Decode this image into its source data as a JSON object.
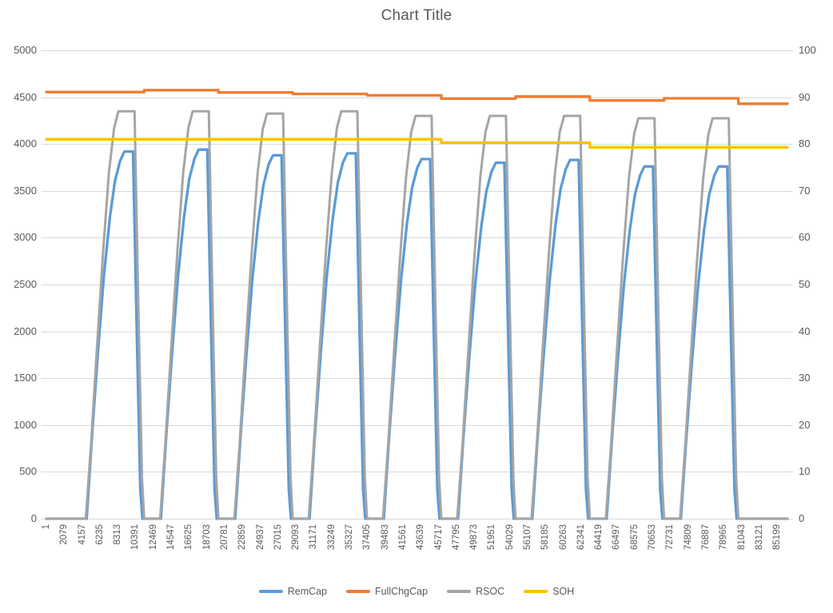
{
  "title": "Chart Title",
  "colors": {
    "remcap": "#5B9BD5",
    "fullchgcap": "#ED7D31",
    "rsoc": "#A5A5A5",
    "soh": "#FFC000",
    "gridline": "#D9D9D9",
    "axis_text": "#595959",
    "title_text": "#595959",
    "background": "#FFFFFF"
  },
  "legend": {
    "position": "bottom",
    "items": [
      {
        "label": "RemCap",
        "color": "#5B9BD5"
      },
      {
        "label": "FullChgCap",
        "color": "#ED7D31"
      },
      {
        "label": "RSOC",
        "color": "#A5A5A5"
      },
      {
        "label": "SOH",
        "color": "#FFC000"
      }
    ]
  },
  "chart_data": {
    "type": "line",
    "title": "Chart Title",
    "grid": "horizontal",
    "x_min": 1,
    "x_max": 86400,
    "left_axis": {
      "min": 0,
      "max": 5000,
      "step": 500,
      "ticks": [
        0,
        500,
        1000,
        1500,
        2000,
        2500,
        3000,
        3500,
        4000,
        4500,
        5000
      ]
    },
    "right_axis": {
      "min": 0,
      "max": 100,
      "step": 10,
      "ticks": [
        0,
        10,
        20,
        30,
        40,
        50,
        60,
        70,
        80,
        90,
        100
      ]
    },
    "x_tick_labels": [
      "1",
      "2079",
      "4157",
      "6235",
      "8313",
      "10391",
      "12469",
      "14547",
      "16625",
      "18703",
      "20781",
      "22859",
      "24937",
      "27015",
      "29093",
      "31171",
      "33249",
      "35327",
      "37405",
      "39483",
      "41561",
      "43639",
      "45717",
      "47795",
      "49873",
      "51951",
      "54029",
      "56107",
      "58185",
      "60263",
      "62341",
      "64419",
      "66497",
      "68575",
      "70653",
      "72731",
      "74809",
      "76887",
      "78965",
      "81043",
      "83121",
      "85199"
    ],
    "x_tick_start": 1,
    "x_tick_step": 2078,
    "series": [
      {
        "name": "RemCap",
        "axis": "left",
        "color": "#5B9BD5",
        "width": 3.3,
        "points": [
          [
            1,
            0
          ],
          [
            4700,
            0
          ],
          [
            5300,
            862
          ],
          [
            6000,
            1764
          ],
          [
            6700,
            2587
          ],
          [
            7400,
            3214
          ],
          [
            8000,
            3606
          ],
          [
            8600,
            3822
          ],
          [
            9100,
            3920
          ],
          [
            10100,
            3920
          ],
          [
            10550,
            1960
          ],
          [
            10950,
            314
          ],
          [
            11200,
            0
          ],
          [
            13360,
            0
          ],
          [
            13960,
            867
          ],
          [
            14660,
            1773
          ],
          [
            15360,
            2600
          ],
          [
            16060,
            3231
          ],
          [
            16660,
            3625
          ],
          [
            17260,
            3842
          ],
          [
            17760,
            3940
          ],
          [
            18760,
            3940
          ],
          [
            19210,
            1970
          ],
          [
            19610,
            315
          ],
          [
            19860,
            0
          ],
          [
            22020,
            0
          ],
          [
            22620,
            854
          ],
          [
            23320,
            1746
          ],
          [
            24020,
            2561
          ],
          [
            24720,
            3182
          ],
          [
            25320,
            3570
          ],
          [
            25920,
            3783
          ],
          [
            26420,
            3880
          ],
          [
            27420,
            3880
          ],
          [
            27870,
            1940
          ],
          [
            28270,
            310
          ],
          [
            28520,
            0
          ],
          [
            30680,
            0
          ],
          [
            31280,
            858
          ],
          [
            31980,
            1755
          ],
          [
            32680,
            2574
          ],
          [
            33380,
            3198
          ],
          [
            33980,
            3588
          ],
          [
            34580,
            3803
          ],
          [
            35080,
            3900
          ],
          [
            36080,
            3900
          ],
          [
            36530,
            1950
          ],
          [
            36930,
            312
          ],
          [
            37180,
            0
          ],
          [
            39340,
            0
          ],
          [
            39940,
            845
          ],
          [
            40640,
            1728
          ],
          [
            41340,
            2534
          ],
          [
            42040,
            3149
          ],
          [
            42640,
            3533
          ],
          [
            43240,
            3744
          ],
          [
            43740,
            3840
          ],
          [
            44740,
            3840
          ],
          [
            45190,
            1920
          ],
          [
            45590,
            307
          ],
          [
            45840,
            0
          ],
          [
            48000,
            0
          ],
          [
            48600,
            836
          ],
          [
            49300,
            1710
          ],
          [
            50000,
            2508
          ],
          [
            50700,
            3116
          ],
          [
            51300,
            3496
          ],
          [
            51900,
            3705
          ],
          [
            52400,
            3800
          ],
          [
            53400,
            3800
          ],
          [
            53850,
            1900
          ],
          [
            54250,
            304
          ],
          [
            54500,
            0
          ],
          [
            56660,
            0
          ],
          [
            57260,
            843
          ],
          [
            57960,
            1724
          ],
          [
            58660,
            2528
          ],
          [
            59360,
            3141
          ],
          [
            59960,
            3524
          ],
          [
            60560,
            3734
          ],
          [
            61060,
            3830
          ],
          [
            62060,
            3830
          ],
          [
            62510,
            1915
          ],
          [
            62910,
            306
          ],
          [
            63160,
            0
          ],
          [
            65320,
            0
          ],
          [
            65920,
            827
          ],
          [
            66620,
            1692
          ],
          [
            67320,
            2482
          ],
          [
            68020,
            3083
          ],
          [
            68620,
            3459
          ],
          [
            69220,
            3666
          ],
          [
            69720,
            3760
          ],
          [
            70720,
            3760
          ],
          [
            71170,
            1880
          ],
          [
            71570,
            301
          ],
          [
            71820,
            0
          ],
          [
            73980,
            0
          ],
          [
            74580,
            827
          ],
          [
            75280,
            1692
          ],
          [
            75980,
            2482
          ],
          [
            76680,
            3083
          ],
          [
            77280,
            3459
          ],
          [
            77880,
            3666
          ],
          [
            78380,
            3760
          ],
          [
            79380,
            3760
          ],
          [
            79830,
            1880
          ],
          [
            80230,
            301
          ],
          [
            80480,
            0
          ],
          [
            86400,
            0
          ]
        ]
      },
      {
        "name": "FullChgCap",
        "axis": "left",
        "color": "#ED7D31",
        "width": 3.3,
        "points": [
          [
            1,
            4555
          ],
          [
            11400,
            4555
          ],
          [
            11400,
            4575
          ],
          [
            20060,
            4575
          ],
          [
            20060,
            4550
          ],
          [
            28720,
            4550
          ],
          [
            28720,
            4535
          ],
          [
            37380,
            4535
          ],
          [
            37380,
            4520
          ],
          [
            46040,
            4520
          ],
          [
            46040,
            4485
          ],
          [
            54700,
            4485
          ],
          [
            54700,
            4507
          ],
          [
            63360,
            4507
          ],
          [
            63360,
            4465
          ],
          [
            72020,
            4465
          ],
          [
            72020,
            4488
          ],
          [
            80680,
            4488
          ],
          [
            80680,
            4430
          ],
          [
            86400,
            4430
          ]
        ]
      },
      {
        "name": "RSOC",
        "axis": "right",
        "color": "#A5A5A5",
        "width": 3,
        "points": [
          [
            1,
            0
          ],
          [
            4600,
            0
          ],
          [
            5200,
            15.7
          ],
          [
            5900,
            36.5
          ],
          [
            6600,
            56.6
          ],
          [
            7300,
            74
          ],
          [
            7900,
            83.5
          ],
          [
            8400,
            87
          ],
          [
            10280,
            87
          ],
          [
            10750,
            43.5
          ],
          [
            11150,
            8.7
          ],
          [
            11400,
            0
          ],
          [
            13260,
            0
          ],
          [
            13860,
            15.7
          ],
          [
            14560,
            36.5
          ],
          [
            15260,
            56.6
          ],
          [
            15960,
            74
          ],
          [
            16560,
            83.5
          ],
          [
            17060,
            87
          ],
          [
            18940,
            87
          ],
          [
            19410,
            43.5
          ],
          [
            19810,
            8.7
          ],
          [
            20060,
            0
          ],
          [
            21920,
            0
          ],
          [
            22520,
            15.6
          ],
          [
            23220,
            36.3
          ],
          [
            23920,
            56.2
          ],
          [
            24620,
            73.5
          ],
          [
            25220,
            83.1
          ],
          [
            25720,
            86.5
          ],
          [
            27600,
            86.5
          ],
          [
            28070,
            43.2
          ],
          [
            28470,
            8.6
          ],
          [
            28720,
            0
          ],
          [
            30580,
            0
          ],
          [
            31180,
            15.7
          ],
          [
            31880,
            36.5
          ],
          [
            32580,
            56.6
          ],
          [
            33280,
            74
          ],
          [
            33880,
            83.5
          ],
          [
            34380,
            87
          ],
          [
            36260,
            87
          ],
          [
            36730,
            43.5
          ],
          [
            37130,
            8.7
          ],
          [
            37380,
            0
          ],
          [
            39240,
            0
          ],
          [
            39840,
            15.5
          ],
          [
            40540,
            36.1
          ],
          [
            41240,
            55.9
          ],
          [
            41940,
            73.1
          ],
          [
            42540,
            82.6
          ],
          [
            43040,
            86
          ],
          [
            44920,
            86
          ],
          [
            45390,
            43
          ],
          [
            45790,
            8.6
          ],
          [
            46040,
            0
          ],
          [
            47900,
            0
          ],
          [
            48500,
            15.5
          ],
          [
            49200,
            36.1
          ],
          [
            49900,
            55.9
          ],
          [
            50600,
            73.1
          ],
          [
            51200,
            82.6
          ],
          [
            51700,
            86
          ],
          [
            53580,
            86
          ],
          [
            54050,
            43
          ],
          [
            54450,
            8.6
          ],
          [
            54700,
            0
          ],
          [
            56560,
            0
          ],
          [
            57160,
            15.5
          ],
          [
            57860,
            36.1
          ],
          [
            58560,
            55.9
          ],
          [
            59260,
            73.1
          ],
          [
            59860,
            82.6
          ],
          [
            60360,
            86
          ],
          [
            62240,
            86
          ],
          [
            62710,
            43
          ],
          [
            63110,
            8.6
          ],
          [
            63360,
            0
          ],
          [
            65220,
            0
          ],
          [
            65820,
            15.4
          ],
          [
            66520,
            35.9
          ],
          [
            67220,
            55.6
          ],
          [
            67920,
            72.7
          ],
          [
            68520,
            82.1
          ],
          [
            69020,
            85.5
          ],
          [
            70900,
            85.5
          ],
          [
            71370,
            42.8
          ],
          [
            71770,
            8.6
          ],
          [
            72020,
            0
          ],
          [
            73880,
            0
          ],
          [
            74480,
            15.4
          ],
          [
            75180,
            35.9
          ],
          [
            75880,
            55.6
          ],
          [
            76580,
            72.7
          ],
          [
            77180,
            82.1
          ],
          [
            77680,
            85.5
          ],
          [
            79560,
            85.5
          ],
          [
            80030,
            42.8
          ],
          [
            80430,
            8.6
          ],
          [
            80680,
            0
          ],
          [
            86400,
            0
          ]
        ]
      },
      {
        "name": "SOH",
        "axis": "right",
        "color": "#FFC000",
        "width": 3.3,
        "points": [
          [
            1,
            81
          ],
          [
            46040,
            81
          ],
          [
            46040,
            80.3
          ],
          [
            63360,
            80.3
          ],
          [
            63360,
            79.3
          ],
          [
            86400,
            79.3
          ]
        ]
      }
    ]
  }
}
